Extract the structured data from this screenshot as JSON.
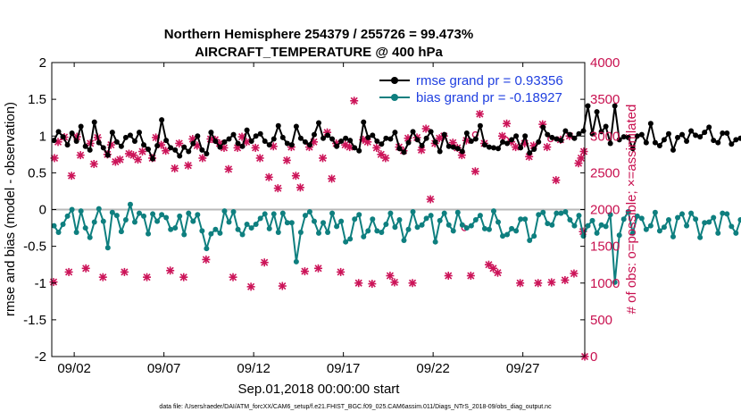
{
  "chart_data": {
    "type": "line",
    "title_line1": "Northern Hemisphere 254379 / 255726 = 99.473%",
    "title_line2": "AIRCRAFT_TEMPERATURE @ 400 hPa",
    "xlabel": "Sep.01,2018 00:00:00 start",
    "ylabel_left": "rmse and bias (model - observation)",
    "ylabel_right": "# of obs: o=possible; ×=assimilated",
    "footnote": "data file: /Users/raeder/DAI/ATM_forcXX/CAM6_setup/f.e21.FHIST_BGC.f09_025.CAM6assim.011/Diags_NTrS_2018-09/obs_diag_output.nc",
    "xlim": [
      0.5,
      30.2
    ],
    "ylim_left": [
      -2,
      2
    ],
    "ylim_right": [
      0,
      4000
    ],
    "x_ticks": [
      1.75,
      6.75,
      11.75,
      16.75,
      21.75,
      26.75
    ],
    "x_tick_labels": [
      "09/02",
      "09/07",
      "09/12",
      "09/17",
      "09/22",
      "09/27"
    ],
    "y_ticks_left": [
      "2",
      "1.5",
      "1",
      "0.5",
      "0",
      "-0.5",
      "-1",
      "-1.5",
      "-2"
    ],
    "y_ticks_right": [
      "4000",
      "3500",
      "3000",
      "2500",
      "2000",
      "1500",
      "1000",
      "500",
      "0"
    ],
    "legend": [
      "rmse grand pr = 0.93356",
      "bias grand pr = -0.18927"
    ],
    "series_colors": {
      "rmse": "#000000",
      "bias": "#0e7f7f",
      "obs": "#cc1459"
    },
    "x_start": 0.625,
    "x_step": 0.25,
    "rmse": [
      0.94,
      1.06,
      0.99,
      0.88,
      1.04,
      0.93,
      1.13,
      0.86,
      0.81,
      1.19,
      0.91,
      0.84,
      0.74,
      1.05,
      0.92,
      0.86,
      0.98,
      1.01,
      0.93,
      1.05,
      0.88,
      0.82,
      0.69,
      0.87,
      1.22,
      0.94,
      0.84,
      0.81,
      0.73,
      0.85,
      0.79,
      0.9,
      1.0,
      0.81,
      0.76,
      1.05,
      0.93,
      0.85,
      0.92,
      0.96,
      1.02,
      0.9,
      0.86,
      1.08,
      0.93,
      1.0,
      1.03,
      0.93,
      0.88,
      0.96,
      1.14,
      0.98,
      0.9,
      0.88,
      1.13,
      0.97,
      0.92,
      0.88,
      1.02,
      1.18,
      0.97,
      1.01,
      0.96,
      0.86,
      0.93,
      0.97,
      0.94,
      0.84,
      0.8,
      1.19,
      0.98,
      1.01,
      0.93,
      0.89,
      0.97,
      0.96,
      1.05,
      0.83,
      0.78,
      0.91,
      1.06,
      0.95,
      0.87,
      0.97,
      1.06,
      0.92,
      0.79,
      1.02,
      0.86,
      0.85,
      0.83,
      0.79,
      1.04,
      0.93,
      0.96,
      1.14,
      0.88,
      0.85,
      0.84,
      0.83,
      0.92,
      0.9,
      0.95,
      1.0,
      0.84,
      1.0,
      0.77,
      0.82,
      0.92,
      1.12,
      1.02,
      0.98,
      0.96,
      0.94,
      1.07,
      1.02,
      0.97,
      1.03,
      1.07,
      1.41,
      1.03,
      1.33,
      1.06,
      1.13,
      0.9,
      1.41,
      0.95,
      0.99,
      0.98,
      0.83,
      1.0,
      1.02,
      0.91,
      1.17,
      0.91,
      0.87,
      0.95,
      1.03,
      0.81,
      0.98,
      1.02,
      0.93,
      1.07,
      1.01,
      0.99,
      1.05,
      1.12,
      0.94,
      0.91,
      1.04,
      1.04,
      0.89,
      0.95,
      0.97,
      1.02,
      0.99,
      1.04,
      1.02,
      1.05,
      0.97,
      1.0,
      1.0,
      1.06,
      1.09
    ],
    "bias": [
      -0.22,
      -0.31,
      -0.2,
      -0.09,
      0.0,
      -0.31,
      -0.02,
      -0.25,
      -0.38,
      -0.17,
      0.01,
      -0.16,
      -0.52,
      -0.04,
      -0.08,
      -0.3,
      -0.14,
      0.07,
      -0.17,
      -0.05,
      -0.09,
      -0.33,
      -0.06,
      -0.16,
      -0.07,
      -0.11,
      -0.27,
      -0.25,
      -0.09,
      -0.34,
      -0.05,
      -0.16,
      -0.07,
      -0.29,
      -0.53,
      -0.33,
      -0.27,
      -0.32,
      -0.02,
      -0.17,
      -0.03,
      -0.27,
      -0.34,
      -0.2,
      -0.25,
      -0.2,
      -0.12,
      -0.06,
      -0.26,
      -0.06,
      -0.31,
      -0.05,
      -0.18,
      -0.18,
      -0.71,
      -0.31,
      -0.08,
      -0.03,
      -0.16,
      -0.32,
      -0.18,
      -0.31,
      -0.05,
      -0.23,
      -0.16,
      -0.44,
      -0.4,
      -0.13,
      -0.07,
      -0.37,
      -0.29,
      -0.13,
      -0.29,
      -0.31,
      -0.2,
      -0.05,
      -0.24,
      -0.14,
      -0.42,
      -0.27,
      -0.03,
      -0.24,
      -0.21,
      -0.12,
      -0.08,
      -0.44,
      -0.15,
      -0.05,
      -0.21,
      -0.29,
      -0.04,
      -0.21,
      -0.25,
      -0.22,
      -0.14,
      -0.08,
      -0.26,
      -0.27,
      -0.02,
      -0.17,
      -0.36,
      -0.34,
      -0.26,
      -0.29,
      -0.13,
      -0.13,
      -0.42,
      -0.36,
      -0.07,
      -0.04,
      -0.19,
      -0.21,
      -0.05,
      -0.05,
      -0.03,
      -0.14,
      -0.22,
      -0.08,
      -0.36,
      -0.22,
      -0.15,
      -0.32,
      -0.21,
      -0.23,
      -0.07,
      -0.99,
      -0.35,
      -0.13,
      -0.03,
      -0.32,
      -0.09,
      -0.12,
      -0.27,
      -0.22,
      -0.04,
      -0.29,
      -0.24,
      -0.14,
      -0.37,
      -0.11,
      -0.06,
      -0.22,
      -0.05,
      -0.13,
      -0.38,
      -0.18,
      -0.17,
      -0.11,
      -0.32,
      -0.05,
      -0.06,
      -0.23,
      -0.32,
      -0.14,
      -0.06,
      -0.28,
      -0.18,
      -0.42,
      -0.33,
      -0.22,
      -0.31,
      -0.23,
      -0.42,
      -0.3,
      -0.12,
      -0.35,
      -0.01,
      0.0,
      -0.05
    ],
    "obs_assimilated": [
      [
        0.6,
        1014
      ],
      [
        0.65,
        2700
      ],
      [
        0.85,
        2920
      ],
      [
        1.2,
        2985
      ],
      [
        1.45,
        1150
      ],
      [
        1.6,
        2460
      ],
      [
        1.9,
        2990
      ],
      [
        2.1,
        2740
      ],
      [
        2.4,
        1200
      ],
      [
        2.65,
        2900
      ],
      [
        2.85,
        2620
      ],
      [
        3.05,
        2980
      ],
      [
        3.35,
        1080
      ],
      [
        3.6,
        2750
      ],
      [
        3.8,
        2880
      ],
      [
        4.05,
        2650
      ],
      [
        4.3,
        2680
      ],
      [
        4.55,
        1150
      ],
      [
        4.8,
        2760
      ],
      [
        5.05,
        2740
      ],
      [
        5.3,
        2680
      ],
      [
        5.55,
        2790
      ],
      [
        5.8,
        1080
      ],
      [
        6.1,
        2700
      ],
      [
        6.3,
        2980
      ],
      [
        6.6,
        2880
      ],
      [
        6.85,
        2800
      ],
      [
        7.1,
        1170
      ],
      [
        7.35,
        2560
      ],
      [
        7.6,
        2900
      ],
      [
        7.85,
        1080
      ],
      [
        8.1,
        2600
      ],
      [
        8.35,
        2960
      ],
      [
        8.6,
        2870
      ],
      [
        8.9,
        2700
      ],
      [
        9.1,
        1320
      ],
      [
        9.35,
        2960
      ],
      [
        9.6,
        2950
      ],
      [
        9.85,
        2900
      ],
      [
        10.1,
        2840
      ],
      [
        10.35,
        2550
      ],
      [
        10.6,
        1080
      ],
      [
        10.85,
        2840
      ],
      [
        11.1,
        2990
      ],
      [
        11.35,
        2920
      ],
      [
        11.6,
        950
      ],
      [
        11.85,
        2840
      ],
      [
        12.1,
        2700
      ],
      [
        12.35,
        1280
      ],
      [
        12.6,
        2440
      ],
      [
        12.85,
        2860
      ],
      [
        13.1,
        2290
      ],
      [
        13.35,
        960
      ],
      [
        13.6,
        2670
      ],
      [
        13.85,
        2850
      ],
      [
        14.1,
        2460
      ],
      [
        14.35,
        2300
      ],
      [
        14.6,
        1160
      ],
      [
        14.85,
        2850
      ],
      [
        15.1,
        2920
      ],
      [
        15.35,
        1200
      ],
      [
        15.6,
        2700
      ],
      [
        15.85,
        3050
      ],
      [
        16.1,
        2420
      ],
      [
        16.35,
        2900
      ],
      [
        16.6,
        1150
      ],
      [
        16.85,
        2880
      ],
      [
        17.1,
        2850
      ],
      [
        17.35,
        3480
      ],
      [
        17.6,
        1000
      ],
      [
        17.85,
        2950
      ],
      [
        18.1,
        2920
      ],
      [
        18.35,
        990
      ],
      [
        18.6,
        2840
      ],
      [
        18.85,
        2750
      ],
      [
        19.1,
        2700
      ],
      [
        19.35,
        1100
      ],
      [
        19.6,
        1010
      ],
      [
        19.85,
        2850
      ],
      [
        20.1,
        2800
      ],
      [
        20.35,
        2970
      ],
      [
        20.6,
        1000
      ],
      [
        20.85,
        2980
      ],
      [
        21.1,
        2810
      ],
      [
        21.35,
        3100
      ],
      [
        21.6,
        2140
      ],
      [
        21.85,
        2900
      ],
      [
        22.1,
        2970
      ],
      [
        22.35,
        3000
      ],
      [
        22.6,
        1100
      ],
      [
        22.85,
        2910
      ],
      [
        23.1,
        2840
      ],
      [
        23.35,
        2740
      ],
      [
        23.6,
        2940
      ],
      [
        23.85,
        1100
      ],
      [
        24.1,
        2520
      ],
      [
        24.35,
        3300
      ],
      [
        24.6,
        2900
      ],
      [
        24.85,
        1250
      ],
      [
        25.1,
        1200
      ],
      [
        25.35,
        1140
      ],
      [
        25.6,
        3000
      ],
      [
        25.85,
        3170
      ],
      [
        26.1,
        2920
      ],
      [
        26.35,
        2850
      ],
      [
        26.6,
        1000
      ],
      [
        26.85,
        2900
      ],
      [
        27.1,
        2720
      ],
      [
        27.35,
        2870
      ],
      [
        27.6,
        1000
      ],
      [
        27.85,
        3160
      ],
      [
        28.1,
        2850
      ],
      [
        28.35,
        1010
      ],
      [
        28.6,
        2400
      ],
      [
        28.85,
        2950
      ],
      [
        29.1,
        1040
      ],
      [
        29.35,
        3000
      ],
      [
        29.6,
        1130
      ],
      [
        29.85,
        2630
      ],
      [
        30.0,
        2700
      ],
      [
        30.15,
        2790
      ],
      [
        30.1,
        1700
      ],
      [
        30.2,
        0
      ]
    ],
    "obs_possible_only": [
      [
        23.5,
        1750
      ],
      [
        24.1,
        3020
      ],
      [
        25.8,
        2950
      ],
      [
        28.3,
        2960
      ]
    ]
  }
}
